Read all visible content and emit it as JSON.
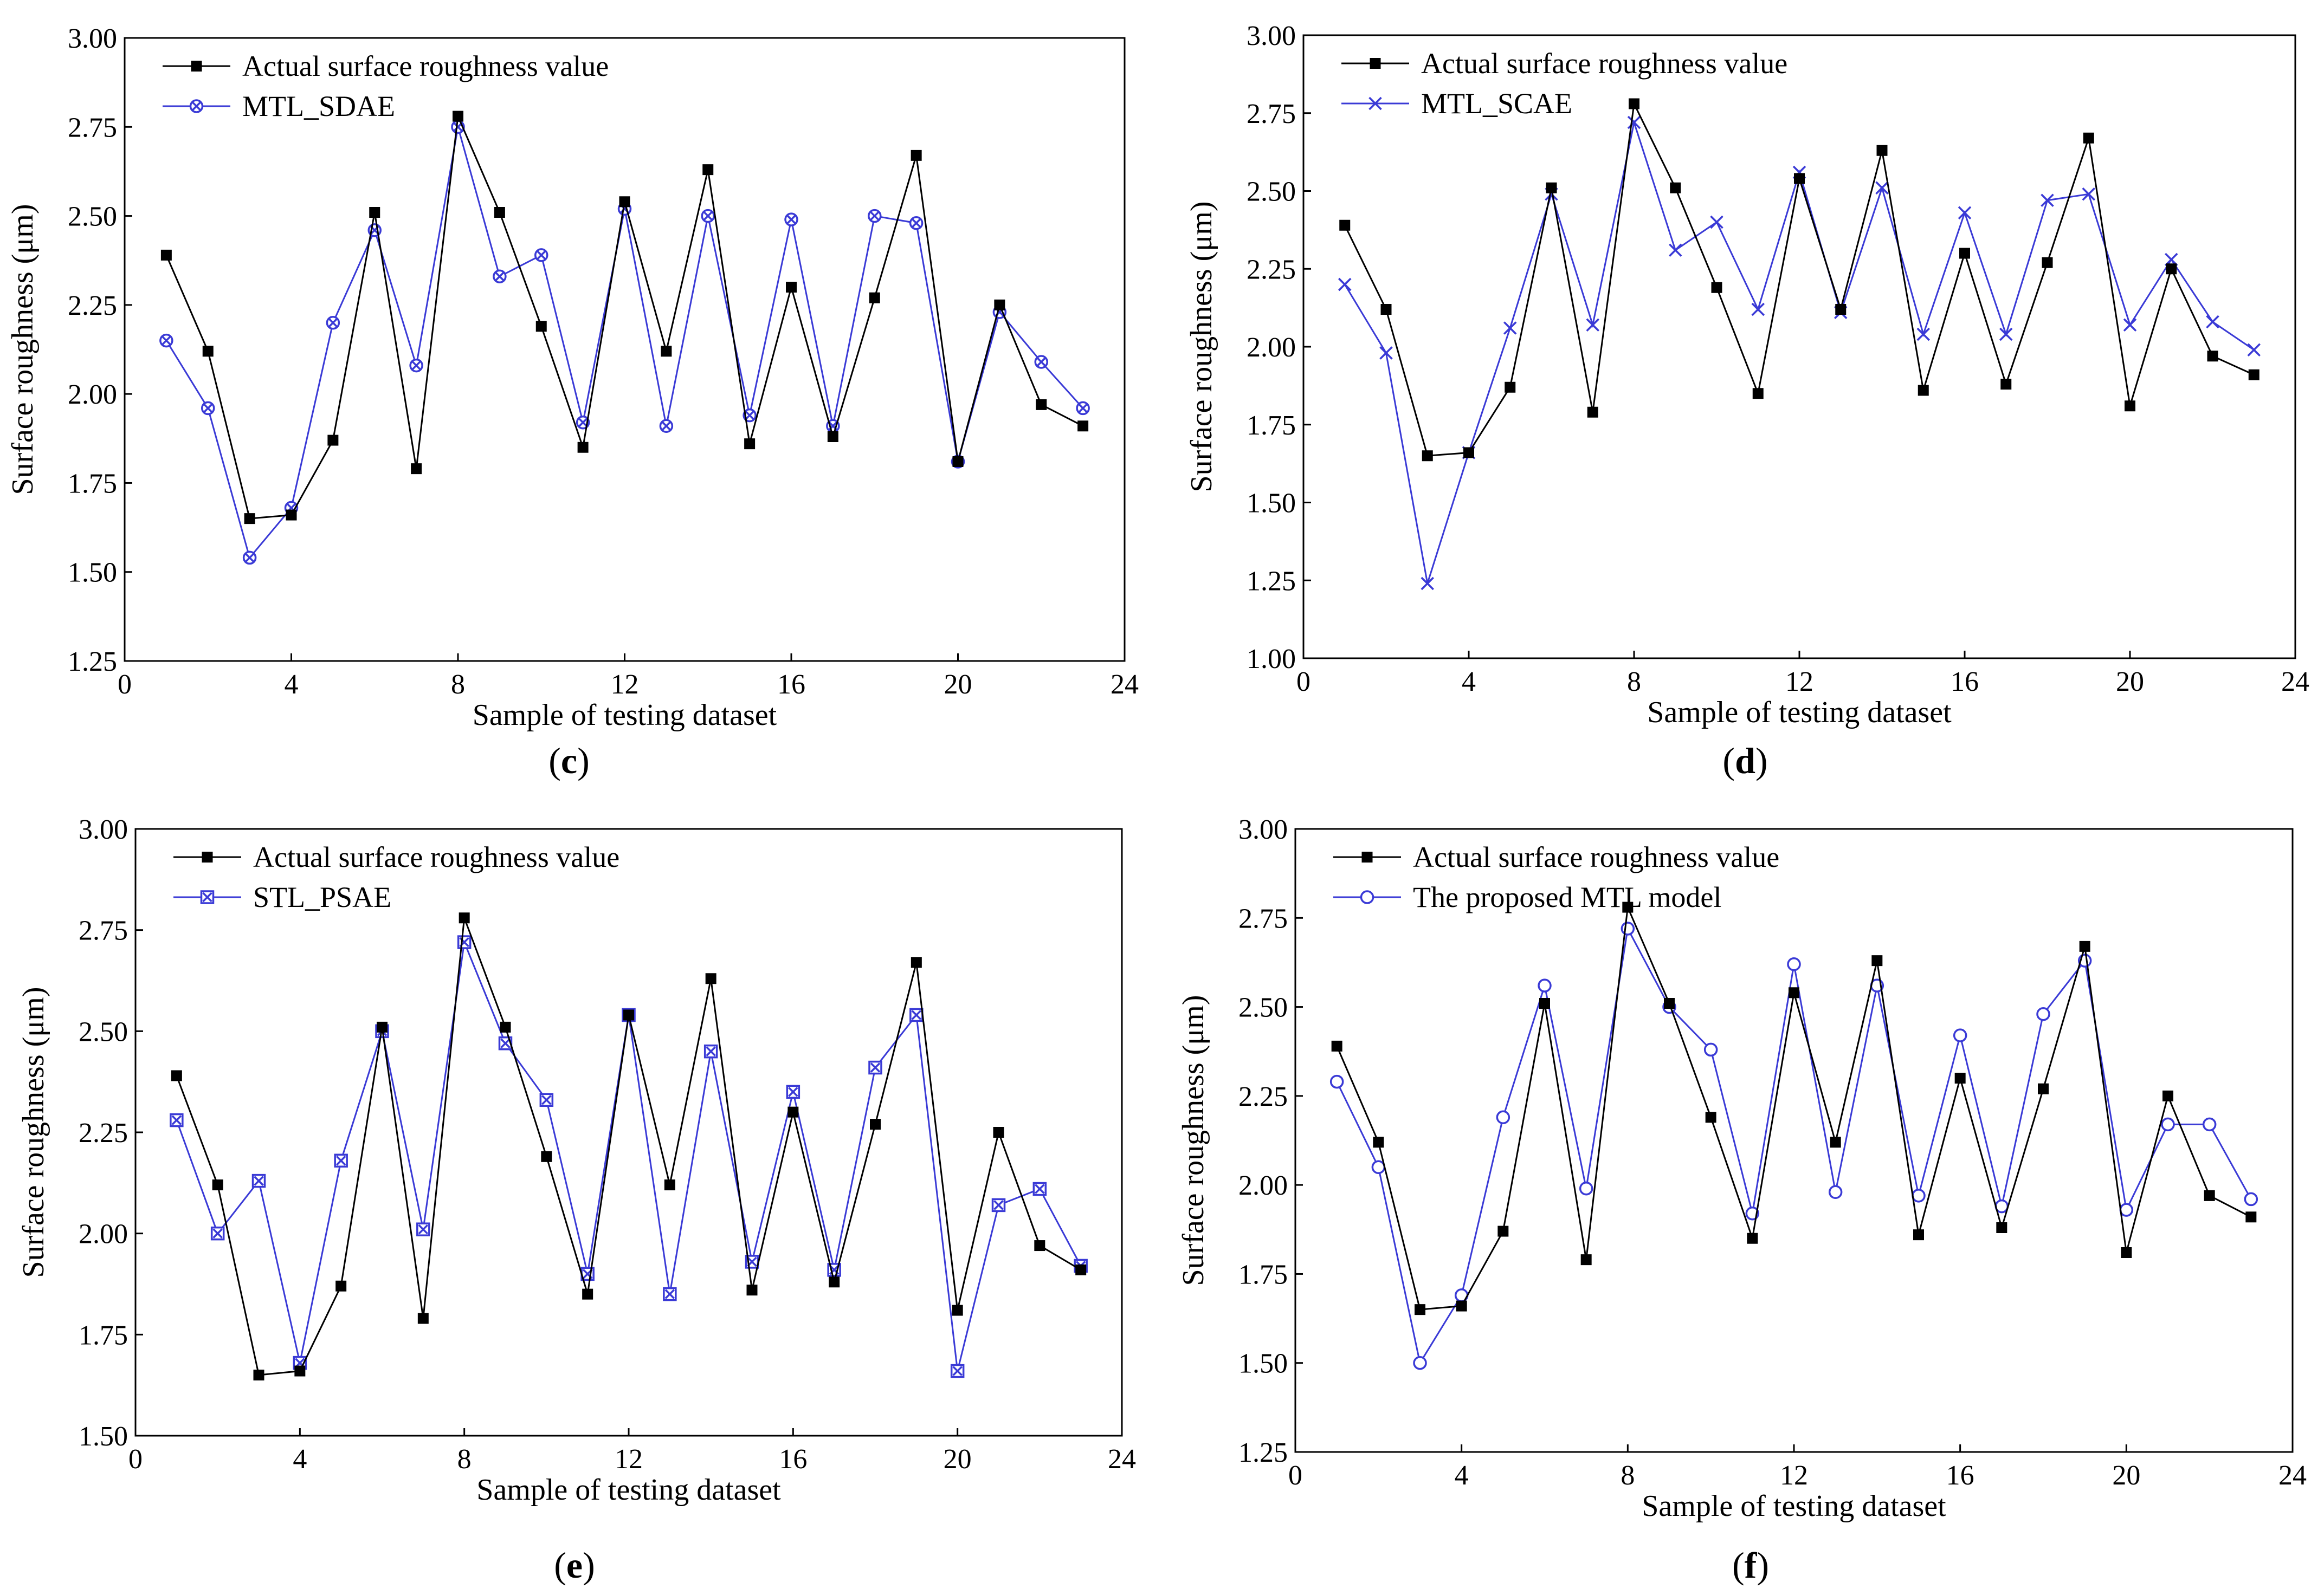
{
  "colors": {
    "actual": "#000000",
    "predicted": "#3a3ad6",
    "axis": "#000000"
  },
  "charts": [
    {
      "id": "c",
      "caption": "c",
      "chart_data": {
        "type": "line",
        "xlabel": "Sample of testing dataset",
        "ylabel": "Surface roughness (μm)",
        "xlim": [
          0,
          24
        ],
        "ylim": [
          1.25,
          3.0
        ],
        "xticks": [
          0,
          4,
          8,
          12,
          16,
          20,
          24
        ],
        "yticks": [
          1.25,
          1.5,
          1.75,
          2.0,
          2.25,
          2.5,
          2.75,
          3.0
        ],
        "yticklabels": [
          "1.25",
          "1.50",
          "1.75",
          "2.00",
          "2.25",
          "2.50",
          "2.75",
          "3.00"
        ],
        "x": [
          1,
          2,
          3,
          4,
          5,
          6,
          7,
          8,
          9,
          10,
          11,
          12,
          13,
          14,
          15,
          16,
          17,
          18,
          19,
          20,
          21,
          22,
          23
        ],
        "series": [
          {
            "name": "Actual surface roughness value",
            "marker": "square",
            "values": [
              2.39,
              2.12,
              1.65,
              1.66,
              1.87,
              2.51,
              1.79,
              2.78,
              2.51,
              2.19,
              1.85,
              2.54,
              2.12,
              2.63,
              1.86,
              2.3,
              1.88,
              2.27,
              2.67,
              1.81,
              2.25,
              1.97,
              1.91
            ]
          },
          {
            "name": "MTL_SDAE",
            "marker": "circle-x",
            "values": [
              2.15,
              1.96,
              1.54,
              1.68,
              2.2,
              2.46,
              2.08,
              2.75,
              2.33,
              2.39,
              1.92,
              2.52,
              1.91,
              2.5,
              1.94,
              2.49,
              1.91,
              2.5,
              2.48,
              1.81,
              2.23,
              2.09,
              1.96
            ]
          }
        ]
      }
    },
    {
      "id": "d",
      "caption": "d",
      "chart_data": {
        "type": "line",
        "xlabel": "Sample of testing dataset",
        "ylabel": "Surface roughness (μm)",
        "xlim": [
          0,
          24
        ],
        "ylim": [
          1.0,
          3.0
        ],
        "xticks": [
          0,
          4,
          8,
          12,
          16,
          20,
          24
        ],
        "yticks": [
          1.0,
          1.25,
          1.5,
          1.75,
          2.0,
          2.25,
          2.5,
          2.75,
          3.0
        ],
        "yticklabels": [
          "1.00",
          "1.25",
          "1.50",
          "1.75",
          "2.00",
          "2.25",
          "2.50",
          "2.75",
          "3.00"
        ],
        "x": [
          1,
          2,
          3,
          4,
          5,
          6,
          7,
          8,
          9,
          10,
          11,
          12,
          13,
          14,
          15,
          16,
          17,
          18,
          19,
          20,
          21,
          22,
          23
        ],
        "series": [
          {
            "name": "Actual surface roughness value",
            "marker": "square",
            "values": [
              2.39,
              2.12,
              1.65,
              1.66,
              1.87,
              2.51,
              1.79,
              2.78,
              2.51,
              2.19,
              1.85,
              2.54,
              2.12,
              2.63,
              1.86,
              2.3,
              1.88,
              2.27,
              2.67,
              1.81,
              2.25,
              1.97,
              1.91
            ]
          },
          {
            "name": "MTL_SCAE",
            "marker": "x",
            "values": [
              2.2,
              1.98,
              1.24,
              1.66,
              2.06,
              2.49,
              2.07,
              2.72,
              2.31,
              2.4,
              2.12,
              2.56,
              2.11,
              2.51,
              2.04,
              2.43,
              2.04,
              2.47,
              2.49,
              2.07,
              2.28,
              2.08,
              1.99
            ]
          }
        ]
      }
    },
    {
      "id": "e",
      "caption": "e",
      "chart_data": {
        "type": "line",
        "xlabel": "Sample of testing dataset",
        "ylabel": "Surface roughness (μm)",
        "xlim": [
          0,
          24
        ],
        "ylim": [
          1.5,
          3.0
        ],
        "xticks": [
          0,
          4,
          8,
          12,
          16,
          20,
          24
        ],
        "yticks": [
          1.5,
          1.75,
          2.0,
          2.25,
          2.5,
          2.75,
          3.0
        ],
        "yticklabels": [
          "1.50",
          "1.75",
          "2.00",
          "2.25",
          "2.50",
          "2.75",
          "3.00"
        ],
        "x": [
          1,
          2,
          3,
          4,
          5,
          6,
          7,
          8,
          9,
          10,
          11,
          12,
          13,
          14,
          15,
          16,
          17,
          18,
          19,
          20,
          21,
          22,
          23
        ],
        "series": [
          {
            "name": "Actual surface roughness value",
            "marker": "square",
            "values": [
              2.39,
              2.12,
              1.65,
              1.66,
              1.87,
              2.51,
              1.79,
              2.78,
              2.51,
              2.19,
              1.85,
              2.54,
              2.12,
              2.63,
              1.86,
              2.3,
              1.88,
              2.27,
              2.67,
              1.81,
              2.25,
              1.97,
              1.91
            ]
          },
          {
            "name": "STL_PSAE",
            "marker": "square-x",
            "values": [
              2.28,
              2.0,
              2.13,
              1.68,
              2.18,
              2.5,
              2.01,
              2.72,
              2.47,
              2.33,
              1.9,
              2.54,
              1.85,
              2.45,
              1.93,
              2.35,
              1.91,
              2.41,
              2.54,
              1.66,
              2.07,
              2.11,
              1.92
            ]
          }
        ]
      }
    },
    {
      "id": "f",
      "caption": "f",
      "chart_data": {
        "type": "line",
        "xlabel": "Sample of testing dataset",
        "ylabel": "Surface roughness (μm)",
        "xlim": [
          0,
          24
        ],
        "ylim": [
          1.25,
          3.0
        ],
        "xticks": [
          0,
          4,
          8,
          12,
          16,
          20,
          24
        ],
        "yticks": [
          1.25,
          1.5,
          1.75,
          2.0,
          2.25,
          2.5,
          2.75,
          3.0
        ],
        "yticklabels": [
          "1.25",
          "1.50",
          "1.75",
          "2.00",
          "2.25",
          "2.50",
          "2.75",
          "3.00"
        ],
        "x": [
          1,
          2,
          3,
          4,
          5,
          6,
          7,
          8,
          9,
          10,
          11,
          12,
          13,
          14,
          15,
          16,
          17,
          18,
          19,
          20,
          21,
          22,
          23
        ],
        "series": [
          {
            "name": "Actual surface roughness value",
            "marker": "square",
            "values": [
              2.39,
              2.12,
              1.65,
              1.66,
              1.87,
              2.51,
              1.79,
              2.78,
              2.51,
              2.19,
              1.85,
              2.54,
              2.12,
              2.63,
              1.86,
              2.3,
              1.88,
              2.27,
              2.67,
              1.81,
              2.25,
              1.97,
              1.91
            ]
          },
          {
            "name": "The proposed MTL model",
            "marker": "circle",
            "values": [
              2.29,
              2.05,
              1.5,
              1.69,
              2.19,
              2.56,
              1.99,
              2.72,
              2.5,
              2.38,
              1.92,
              2.62,
              1.98,
              2.56,
              1.97,
              2.42,
              1.94,
              2.48,
              2.63,
              1.93,
              2.17,
              2.17,
              1.96
            ]
          }
        ]
      }
    }
  ]
}
